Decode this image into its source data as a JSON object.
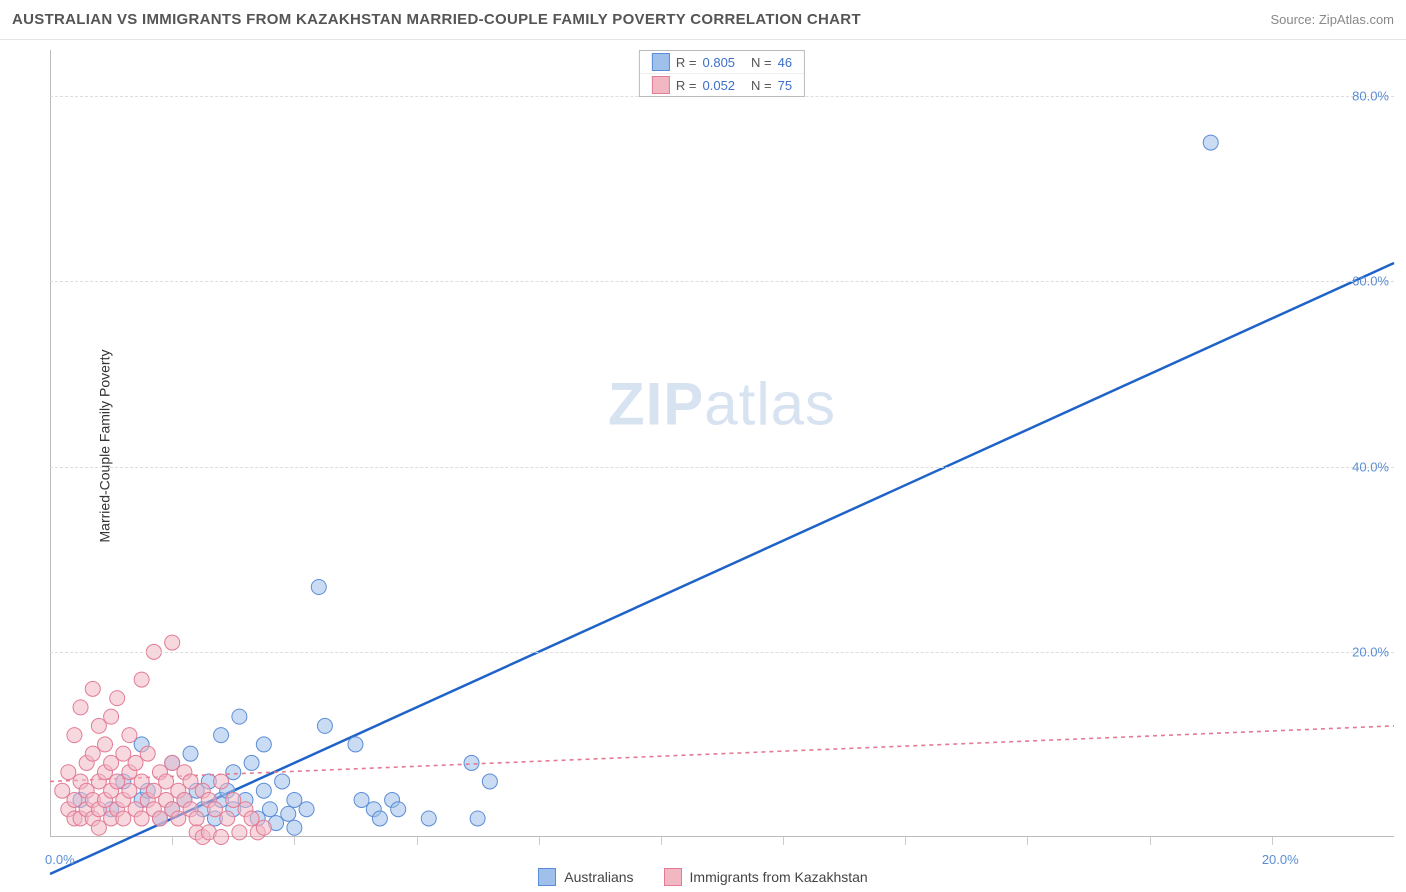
{
  "header": {
    "title": "AUSTRALIAN VS IMMIGRANTS FROM KAZAKHSTAN MARRIED-COUPLE FAMILY POVERTY CORRELATION CHART",
    "source": "Source: ZipAtlas.com"
  },
  "watermark": {
    "a": "ZIP",
    "b": "atlas"
  },
  "chart": {
    "type": "scatter",
    "ylabel": "Married-Couple Family Poverty",
    "xlim": [
      0,
      22
    ],
    "ylim": [
      0,
      85
    ],
    "yticks": [
      20,
      40,
      60,
      80
    ],
    "ytick_labels": [
      "20.0%",
      "40.0%",
      "60.0%",
      "80.0%"
    ],
    "xtick_label_left": "0.0%",
    "xtick_label_right": "20.0%",
    "x_minor_ticks": [
      2,
      4,
      6,
      8,
      10,
      12,
      14,
      16,
      18,
      20
    ],
    "grid_color": "#dddddd",
    "background_color": "#ffffff",
    "marker_radius": 7.5,
    "marker_opacity": 0.55,
    "series": [
      {
        "name": "Australians",
        "color_fill": "#9fc0ea",
        "color_stroke": "#5b8dd6",
        "line_color": "#1f63c9",
        "line_width": 2.5,
        "line_dash": "none",
        "r_label": "R = ",
        "r_value": "0.805",
        "n_label": "N = ",
        "n_value": "46",
        "trend": {
          "x1": 0,
          "y1": -4,
          "x2": 22,
          "y2": 62
        },
        "points": [
          [
            0.5,
            4
          ],
          [
            1.0,
            3
          ],
          [
            1.2,
            6
          ],
          [
            1.5,
            10
          ],
          [
            1.5,
            4
          ],
          [
            1.6,
            5
          ],
          [
            1.8,
            2
          ],
          [
            2.0,
            8
          ],
          [
            2.0,
            3
          ],
          [
            2.2,
            4
          ],
          [
            2.3,
            9
          ],
          [
            2.4,
            5
          ],
          [
            2.5,
            3
          ],
          [
            2.6,
            6
          ],
          [
            2.7,
            2
          ],
          [
            2.8,
            11
          ],
          [
            2.8,
            4
          ],
          [
            2.9,
            5
          ],
          [
            3.0,
            7
          ],
          [
            3.0,
            3
          ],
          [
            3.1,
            13
          ],
          [
            3.2,
            4
          ],
          [
            3.3,
            8
          ],
          [
            3.4,
            2
          ],
          [
            3.5,
            10
          ],
          [
            3.5,
            5
          ],
          [
            3.6,
            3
          ],
          [
            3.7,
            1.5
          ],
          [
            3.8,
            6
          ],
          [
            3.9,
            2.5
          ],
          [
            4.0,
            4
          ],
          [
            4.0,
            1
          ],
          [
            4.2,
            3
          ],
          [
            4.4,
            27
          ],
          [
            4.5,
            12
          ],
          [
            5.0,
            10
          ],
          [
            5.1,
            4
          ],
          [
            5.3,
            3
          ],
          [
            5.4,
            2
          ],
          [
            5.6,
            4
          ],
          [
            5.7,
            3
          ],
          [
            6.2,
            2
          ],
          [
            6.9,
            8
          ],
          [
            7.0,
            2
          ],
          [
            7.2,
            6
          ],
          [
            19.0,
            75
          ]
        ]
      },
      {
        "name": "Immigrants from Kazakhstan",
        "color_fill": "#f1b8c4",
        "color_stroke": "#e37b95",
        "line_color": "#e37b95",
        "line_width": 1.6,
        "line_dash": "4 4",
        "r_label": "R = ",
        "r_value": "0.052",
        "n_label": "N = ",
        "n_value": "75",
        "trend": {
          "x1": 0,
          "y1": 6,
          "x2": 22,
          "y2": 12
        },
        "points": [
          [
            0.2,
            5
          ],
          [
            0.3,
            3
          ],
          [
            0.3,
            7
          ],
          [
            0.4,
            2
          ],
          [
            0.4,
            11
          ],
          [
            0.4,
            4
          ],
          [
            0.5,
            6
          ],
          [
            0.5,
            2
          ],
          [
            0.5,
            14
          ],
          [
            0.6,
            3
          ],
          [
            0.6,
            8
          ],
          [
            0.6,
            5
          ],
          [
            0.7,
            4
          ],
          [
            0.7,
            9
          ],
          [
            0.7,
            2
          ],
          [
            0.7,
            16
          ],
          [
            0.8,
            6
          ],
          [
            0.8,
            3
          ],
          [
            0.8,
            12
          ],
          [
            0.8,
            1
          ],
          [
            0.9,
            7
          ],
          [
            0.9,
            4
          ],
          [
            0.9,
            10
          ],
          [
            1.0,
            2
          ],
          [
            1.0,
            5
          ],
          [
            1.0,
            13
          ],
          [
            1.0,
            8
          ],
          [
            1.1,
            3
          ],
          [
            1.1,
            6
          ],
          [
            1.1,
            15
          ],
          [
            1.2,
            4
          ],
          [
            1.2,
            9
          ],
          [
            1.2,
            2
          ],
          [
            1.3,
            7
          ],
          [
            1.3,
            5
          ],
          [
            1.3,
            11
          ],
          [
            1.4,
            3
          ],
          [
            1.4,
            8
          ],
          [
            1.5,
            6
          ],
          [
            1.5,
            2
          ],
          [
            1.5,
            17
          ],
          [
            1.6,
            4
          ],
          [
            1.6,
            9
          ],
          [
            1.7,
            5
          ],
          [
            1.7,
            3
          ],
          [
            1.7,
            20
          ],
          [
            1.8,
            7
          ],
          [
            1.8,
            2
          ],
          [
            1.9,
            6
          ],
          [
            1.9,
            4
          ],
          [
            2.0,
            8
          ],
          [
            2.0,
            3
          ],
          [
            2.0,
            21
          ],
          [
            2.1,
            5
          ],
          [
            2.1,
            2
          ],
          [
            2.2,
            7
          ],
          [
            2.2,
            4
          ],
          [
            2.3,
            6
          ],
          [
            2.3,
            3
          ],
          [
            2.4,
            2
          ],
          [
            2.4,
            0.5
          ],
          [
            2.5,
            5
          ],
          [
            2.5,
            0
          ],
          [
            2.6,
            4
          ],
          [
            2.6,
            0.5
          ],
          [
            2.7,
            3
          ],
          [
            2.8,
            6
          ],
          [
            2.8,
            0
          ],
          [
            2.9,
            2
          ],
          [
            3.0,
            4
          ],
          [
            3.1,
            0.5
          ],
          [
            3.2,
            3
          ],
          [
            3.3,
            2
          ],
          [
            3.4,
            0.5
          ],
          [
            3.5,
            1
          ]
        ]
      }
    ],
    "bottom_legend": [
      {
        "label": "Australians",
        "fill": "#9fc0ea",
        "stroke": "#5b8dd6"
      },
      {
        "label": "Immigrants from Kazakhstan",
        "fill": "#f1b8c4",
        "stroke": "#e37b95"
      }
    ]
  }
}
